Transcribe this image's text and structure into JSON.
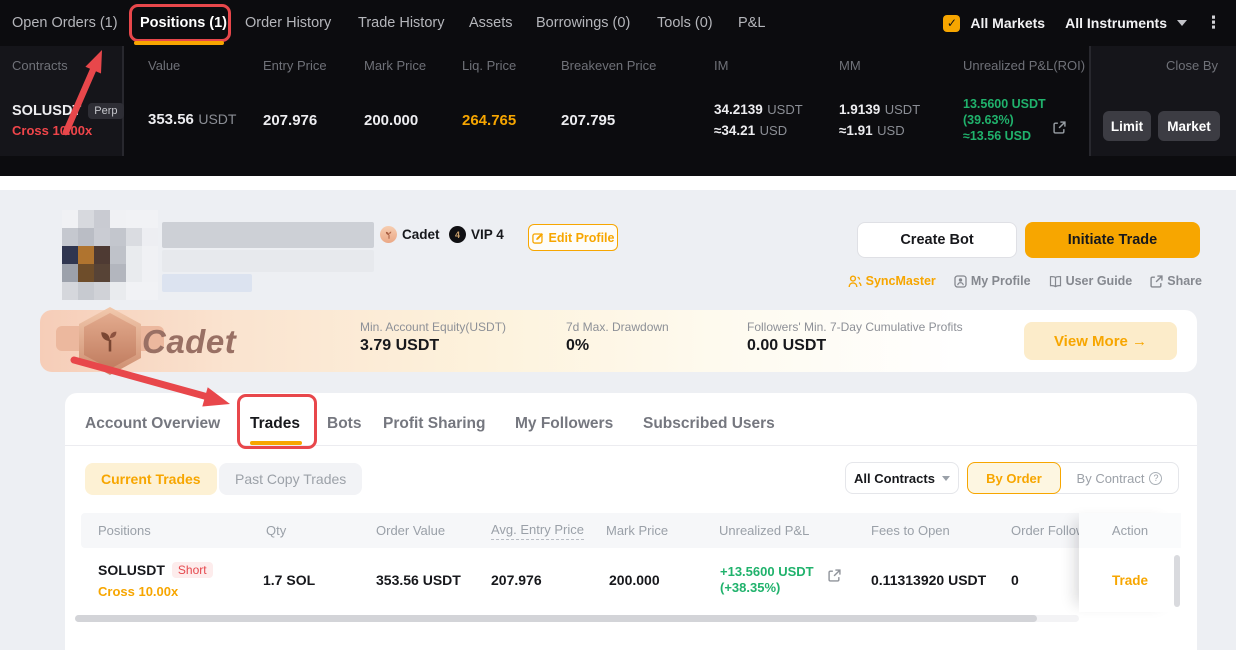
{
  "colors": {
    "accent_orange": "#f7a600",
    "green": "#20b26c",
    "red": "#e5484d",
    "annotation_red": "#e8474b"
  },
  "top_panel": {
    "tabs": [
      "Open Orders (1)",
      "Positions (1)",
      "Order History",
      "Trade History",
      "Assets",
      "Borrowings (0)",
      "Tools (0)",
      "P&L"
    ],
    "checkbox_glyph": "✓",
    "all_markets": "All Markets",
    "all_instruments": "All Instruments",
    "columns": [
      "Contracts",
      "Value",
      "Entry Price",
      "Mark Price",
      "Liq. Price",
      "Breakeven Price",
      "IM",
      "MM",
      "Unrealized P&L(ROI)",
      "Close By"
    ],
    "position": {
      "symbol": "SOLUSDT",
      "contract_badge": "Perp",
      "leverage": "Cross 10.00x",
      "value_amount": "353.56",
      "value_unit": "USDT",
      "entry_price": "207.976",
      "mark_price": "200.000",
      "liq_price": "264.765",
      "breakeven_price": "207.795",
      "im_amount": "34.2139",
      "im_unit": "USDT",
      "im_approx": "≈34.21",
      "im_approx_unit": "USD",
      "mm_amount": "1.9139",
      "mm_unit": "USDT",
      "mm_approx": "≈1.91",
      "mm_approx_unit": "USD",
      "upl_amount": "13.5600 USDT",
      "upl_roi": "(39.63%)",
      "upl_approx": "≈13.56 USD",
      "close_limit": "Limit",
      "close_market": "Market"
    }
  },
  "profile": {
    "level_badge": "Cadet",
    "vip_badge": "VIP 4",
    "vip_icon_glyph": "4",
    "edit_profile": "Edit Profile",
    "create_bot": "Create Bot",
    "initiate_trade": "Initiate Trade",
    "links": [
      "SyncMaster",
      "My Profile",
      "User Guide",
      "Share"
    ],
    "avatar_pixels": [
      "#f0f1f4",
      "#d7d9de",
      "#c9cbd2",
      "#f0f1f4",
      "#f1f2f5",
      "#f1f2f5",
      "#c5c8cf",
      "#babdc5",
      "#caccd3",
      "#c3c6cd",
      "#dadce1",
      "#edeef2",
      "#303650",
      "#b0742f",
      "#4e3a33",
      "#bfc2c9",
      "#e9ebee",
      "#f0f1f4",
      "#9ca1ab",
      "#6e4d2a",
      "#574336",
      "#b3b6be",
      "#e9ebee",
      "#f0f1f4",
      "#d5d7dc",
      "#c7cad0",
      "#d0d2d7",
      "#e9ebee",
      "#f1f2f5",
      "#f1f2f5"
    ]
  },
  "banner": {
    "title": "Cadet",
    "stats": [
      {
        "label": "Min. Account Equity(USDT)",
        "value": "3.79 USDT"
      },
      {
        "label": "7d Max. Drawdown",
        "value": "0%"
      },
      {
        "label": "Followers' Min. 7-Day Cumulative Profits",
        "value": "0.00 USDT"
      }
    ],
    "view_more": "View More →"
  },
  "trades_card": {
    "tabs": [
      "Account Overview",
      "Trades",
      "Bots",
      "Profit Sharing",
      "My Followers",
      "Subscribed Users"
    ],
    "filter_current": "Current Trades",
    "filter_past": "Past Copy Trades",
    "all_contracts": "All Contracts",
    "by_order": "By Order",
    "by_contract": "By Contract",
    "columns": [
      "Positions",
      "Qty",
      "Order Value",
      "Avg. Entry Price",
      "Mark Price",
      "Unrealized P&L",
      "Fees to Open",
      "Order Followers",
      "Action"
    ],
    "row": {
      "symbol": "SOLUSDT",
      "side": "Short",
      "leverage": "Cross 10.00x",
      "qty": "1.7 SOL",
      "order_value": "353.56 USDT",
      "avg_entry_price": "207.976",
      "mark_price": "200.000",
      "upl_amount": "+13.5600 USDT",
      "upl_roi": "(+38.35%)",
      "fees": "0.11313920 USDT",
      "order_followers": "0",
      "action": "Trade"
    }
  }
}
